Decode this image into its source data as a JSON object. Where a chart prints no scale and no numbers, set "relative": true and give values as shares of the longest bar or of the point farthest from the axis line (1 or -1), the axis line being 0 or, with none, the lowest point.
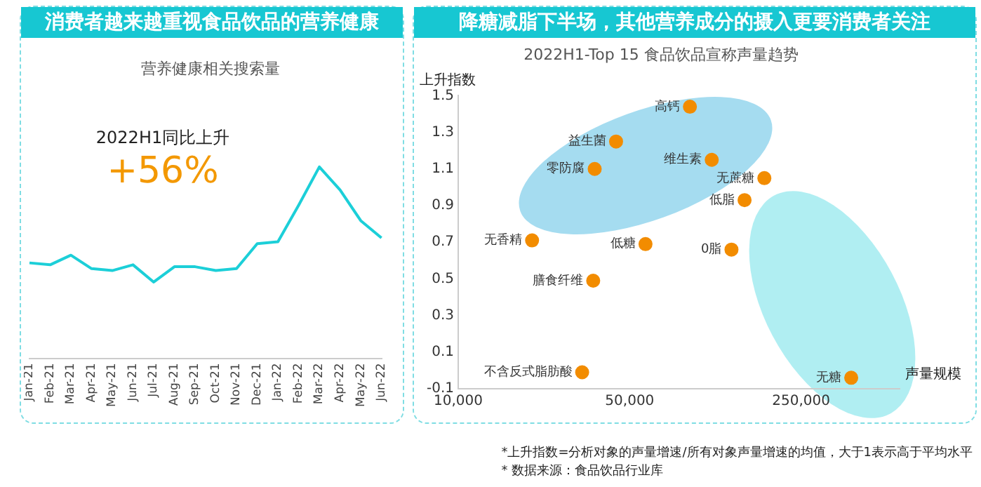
{
  "chart_data": [
    {
      "type": "line",
      "title": "消费者越来越重视食品饮品的营养健康",
      "subtitle": "营养健康相关搜索量",
      "categories": [
        "Jan-21",
        "Feb-21",
        "Mar-21",
        "Apr-21",
        "May-21",
        "Jun-21",
        "Jul-21",
        "Aug-21",
        "Sep-21",
        "Oct-21",
        "Nov-21",
        "Dec-21",
        "Jan-22",
        "Feb-22",
        "Mar-22",
        "Apr-22",
        "May-22",
        "Jun-22"
      ],
      "values": [
        0.5,
        0.49,
        0.54,
        0.47,
        0.46,
        0.49,
        0.4,
        0.48,
        0.48,
        0.46,
        0.47,
        0.6,
        0.61,
        0.8,
        1,
        0.88,
        0.72,
        0.63
      ],
      "color": "#1ccfd8",
      "relative": true,
      "grid": false,
      "marker": "none",
      "legend": false,
      "annotations": [
        "2022H1同比上升",
        "+56%"
      ]
    },
    {
      "type": "scatter",
      "title": "降糖减脂下半场，其他营养成分的摄入更要消费者关注",
      "subtitle": "2022H1-Top 15 食品饮品宣称声量趋势",
      "xlabel": "声量规模",
      "ylabel": "上升指数",
      "log": "x",
      "grid": false,
      "marker": "circle",
      "legend": false,
      "xlim": [
        10000,
        630000
      ],
      "xticks": [
        {
          "value": 10000,
          "label": "10,000"
        },
        {
          "value": 50000,
          "label": "50,000"
        },
        {
          "value": 250000,
          "label": "250,000"
        }
      ],
      "ylim": [
        -0.1,
        1.5
      ],
      "yticks": [
        -0.1,
        0.1,
        0.3,
        0.5,
        0.7,
        0.9,
        1.1,
        1.3,
        1.5
      ],
      "series": [
        {
          "name": "高钙",
          "color": "#f28c00",
          "x": [
            88000
          ],
          "values": [
            1.44
          ]
        },
        {
          "name": "益生菌",
          "color": "#f28c00",
          "x": [
            44000
          ],
          "values": [
            1.25
          ]
        },
        {
          "name": "零防腐",
          "color": "#f28c00",
          "x": [
            36000
          ],
          "values": [
            1.1
          ]
        },
        {
          "name": "维生素",
          "color": "#f28c00",
          "x": [
            108000
          ],
          "values": [
            1.15
          ]
        },
        {
          "name": "无蔗糖",
          "color": "#f28c00",
          "x": [
            177000
          ],
          "values": [
            1.05
          ]
        },
        {
          "name": "低脂",
          "color": "#f28c00",
          "x": [
            147000
          ],
          "values": [
            0.93
          ]
        },
        {
          "name": "0脂",
          "color": "#f28c00",
          "x": [
            130000
          ],
          "values": [
            0.66
          ]
        },
        {
          "name": "无香精",
          "color": "#f28c00",
          "x": [
            20000
          ],
          "values": [
            0.71
          ]
        },
        {
          "name": "低糖",
          "color": "#f28c00",
          "x": [
            58000
          ],
          "values": [
            0.69
          ]
        },
        {
          "name": "膳食纤维",
          "color": "#f28c00",
          "x": [
            35500
          ],
          "values": [
            0.49
          ]
        },
        {
          "name": "不含反式脂肪酸",
          "color": "#f28c00",
          "x": [
            32000
          ],
          "values": [
            -0.01
          ]
        },
        {
          "name": "无糖",
          "color": "#f28c00",
          "x": [
            400000
          ],
          "values": [
            -0.04
          ]
        }
      ],
      "annotations": [
        "*上升指数=分析对象的声量增速/所有对象声量增速的均值，大于1表示高于平均水平",
        "* 数据来源：食品饮品行业库"
      ]
    }
  ]
}
